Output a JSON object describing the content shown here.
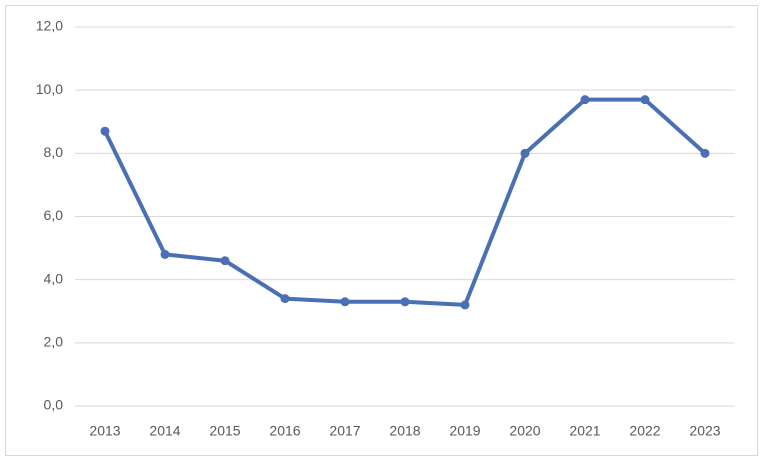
{
  "chart_data": {
    "type": "line",
    "categories": [
      "2013",
      "2014",
      "2015",
      "2016",
      "2017",
      "2018",
      "2019",
      "2020",
      "2021",
      "2022",
      "2023"
    ],
    "values": [
      8.7,
      4.8,
      4.6,
      3.4,
      3.3,
      3.3,
      3.2,
      8.0,
      9.7,
      9.7,
      8.0
    ],
    "color": "#4a6fb5",
    "ylim": [
      0,
      12
    ],
    "yticks": [
      {
        "value": 0,
        "label": "0,0"
      },
      {
        "value": 2,
        "label": "2,0"
      },
      {
        "value": 4,
        "label": "4,0"
      },
      {
        "value": 6,
        "label": "6,0"
      },
      {
        "value": 8,
        "label": "8,0"
      },
      {
        "value": 10,
        "label": "10,0"
      },
      {
        "value": 12,
        "label": "12,0"
      }
    ],
    "grid": true
  }
}
